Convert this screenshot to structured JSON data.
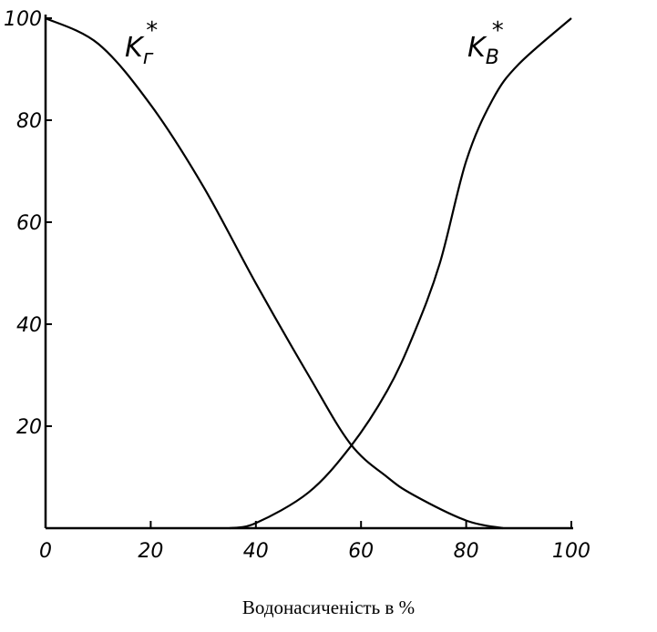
{
  "chart_data": {
    "type": "line",
    "title": "",
    "xlabel": "Водонасиченість в %",
    "ylabel": "",
    "xlim": [
      0,
      100
    ],
    "ylim": [
      0,
      100
    ],
    "x_ticks": [
      "0",
      "20",
      "40",
      "60",
      "80",
      "100"
    ],
    "y_ticks": [
      "20",
      "40",
      "60",
      "80",
      "100"
    ],
    "grid": false,
    "series": [
      {
        "name": "Kг*",
        "label_main": "K",
        "label_sub": "г",
        "label_sup": "*",
        "x": [
          0,
          10,
          20,
          30,
          40,
          50,
          58,
          65,
          70,
          80,
          87
        ],
        "y": [
          100,
          95,
          83,
          67,
          48,
          30,
          16.5,
          10,
          6.5,
          1.5,
          0
        ]
      },
      {
        "name": "Kв*",
        "label_main": "K",
        "label_sub": "B",
        "label_sup": "*",
        "x": [
          35,
          40,
          50,
          58,
          65,
          70,
          75,
          80,
          85,
          90,
          100
        ],
        "y": [
          0,
          1,
          7,
          16,
          27,
          38,
          52,
          72,
          84,
          91,
          100
        ]
      }
    ],
    "line_color": "#000000"
  }
}
